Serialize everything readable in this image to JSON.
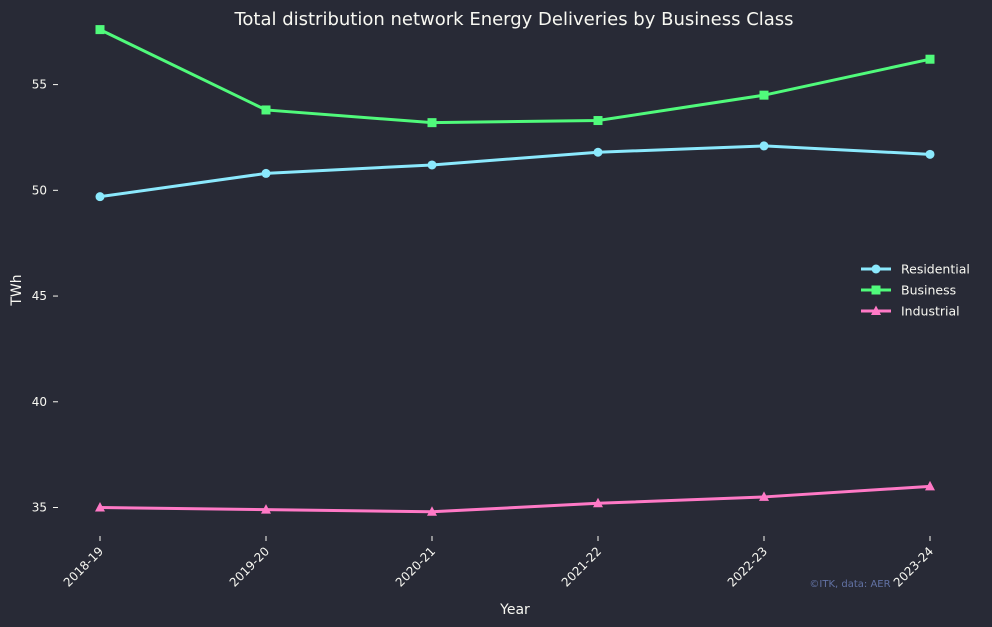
{
  "chart_data": {
    "type": "line",
    "title": "Total distribution network Energy Deliveries by Business Class",
    "xlabel": "Year",
    "ylabel": "TWh",
    "categories": [
      "2018-19",
      "2019-20",
      "2020-21",
      "2021-22",
      "2022-23",
      "2023-24"
    ],
    "ylim": [
      33.7,
      59.0
    ],
    "yticks": [
      35,
      40,
      45,
      50,
      55
    ],
    "grid": false,
    "legend_position": "center-right",
    "series": [
      {
        "name": "Residential",
        "color": "#8be9fd",
        "marker": "circle",
        "values": [
          49.7,
          50.8,
          51.2,
          51.8,
          52.1,
          51.7
        ]
      },
      {
        "name": "Business",
        "color": "#50fa7b",
        "marker": "square",
        "values": [
          57.6,
          53.8,
          53.2,
          53.3,
          54.5,
          56.2
        ]
      },
      {
        "name": "Industrial",
        "color": "#ff79c6",
        "marker": "triangle",
        "values": [
          35.0,
          34.9,
          34.8,
          35.2,
          35.5,
          36.0
        ]
      }
    ],
    "annotation": "©ITK, data: AER"
  }
}
